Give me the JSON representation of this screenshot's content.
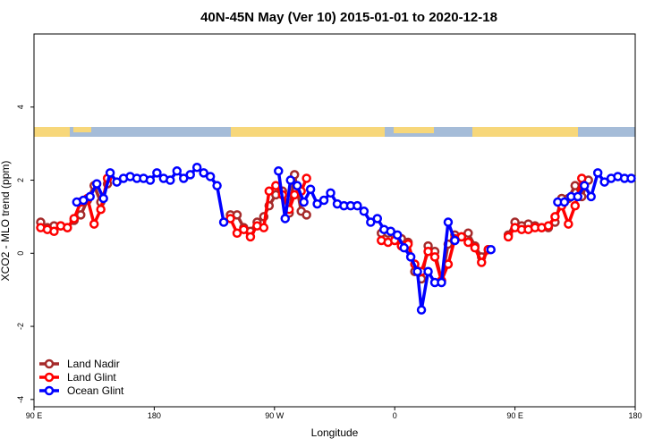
{
  "chart_data": {
    "type": "line",
    "title": "40N-45N May (Ver 10)   2015-01-01 to 2020-12-18",
    "x_label": "Longitude",
    "y_label": "XCO2 - MLO trend (ppm)",
    "xlim": [
      90,
      540
    ],
    "ylim": [
      -4.2,
      6
    ],
    "xticks": [
      {
        "value": 90,
        "label": "90 E"
      },
      180,
      {
        "value": 270,
        "label": "90 W"
      },
      {
        "value": 360,
        "label": "0"
      },
      {
        "value": 450,
        "label": "90 E"
      },
      {
        "value": 540,
        "label": "180"
      }
    ],
    "yticks": [
      -4,
      -2,
      0,
      2,
      4
    ],
    "legend": "bottom-left",
    "series": [
      {
        "name": "Land Nadir",
        "color": "#a52a2a",
        "x": [
          95,
          100,
          105,
          110,
          115,
          120,
          125,
          130,
          135,
          140,
          145,
          190,
          237,
          242,
          247,
          252,
          257,
          262,
          266,
          271,
          276,
          281,
          285,
          290,
          294,
          320,
          350,
          355,
          360,
          365,
          370,
          375,
          380,
          385,
          390,
          395,
          400,
          405,
          410,
          415,
          420,
          425,
          430,
          437,
          445,
          450,
          455,
          460,
          465,
          470,
          475,
          480,
          485,
          490,
          495,
          500,
          505
        ],
        "values": [
          0.85,
          0.7,
          0.75,
          0.75,
          0.7,
          0.9,
          1.05,
          1.45,
          1.85,
          1.4,
          1.9,
          null,
          1.05,
          1.05,
          0.7,
          0.6,
          0.85,
          1.0,
          1.3,
          1.6,
          1.7,
          1.1,
          2.15,
          1.15,
          1.05,
          null,
          0.55,
          0.55,
          0.5,
          0.4,
          0.3,
          -0.5,
          -0.7,
          0.2,
          0.05,
          -0.75,
          0.25,
          0.5,
          0.45,
          0.55,
          0.2,
          -0.1,
          0.1,
          null,
          0.5,
          0.85,
          0.75,
          0.8,
          0.75,
          0.7,
          0.7,
          0.85,
          1.5,
          1.5,
          1.85,
          1.55,
          2.0
        ]
      },
      {
        "name": "Land Glint",
        "color": "#ff0000",
        "x": [
          95,
          100,
          105,
          110,
          115,
          120,
          125,
          130,
          135,
          140,
          145,
          190,
          237,
          242,
          247,
          252,
          257,
          262,
          266,
          271,
          276,
          281,
          285,
          290,
          294,
          320,
          350,
          355,
          360,
          365,
          370,
          375,
          380,
          385,
          390,
          395,
          400,
          405,
          410,
          415,
          420,
          425,
          430,
          437,
          445,
          450,
          455,
          460,
          465,
          470,
          475,
          480,
          485,
          490,
          495,
          500
        ],
        "values": [
          0.7,
          0.65,
          0.6,
          0.75,
          0.7,
          0.95,
          1.4,
          1.5,
          0.8,
          1.2,
          2.05,
          null,
          0.95,
          0.55,
          0.65,
          0.45,
          0.75,
          0.7,
          1.7,
          1.85,
          1.6,
          1.2,
          1.6,
          1.7,
          2.05,
          null,
          0.35,
          0.3,
          0.35,
          0.2,
          0.25,
          -0.3,
          -0.5,
          0.05,
          -0.1,
          -0.75,
          -0.3,
          0.4,
          0.45,
          0.3,
          0.15,
          -0.25,
          0.1,
          null,
          0.45,
          0.7,
          0.65,
          0.65,
          0.7,
          0.7,
          0.75,
          1.0,
          1.3,
          0.8,
          1.3,
          2.05
        ]
      },
      {
        "name": "Ocean Glint",
        "color": "#0000ff",
        "x": [
          122,
          127,
          132,
          137,
          142,
          147,
          152,
          157,
          162,
          167,
          172,
          177,
          182,
          187,
          192,
          197,
          202,
          207,
          212,
          217,
          222,
          227,
          232,
          252,
          273,
          278,
          282,
          287,
          292,
          297,
          302,
          307,
          312,
          317,
          322,
          327,
          332,
          337,
          342,
          347,
          352,
          357,
          362,
          367,
          372,
          377,
          380,
          385,
          390,
          395,
          400,
          405,
          418,
          432,
          457,
          482,
          487,
          492,
          497,
          502,
          507,
          512,
          517,
          522,
          527,
          532,
          537
        ],
        "values": [
          1.4,
          1.45,
          1.55,
          1.9,
          1.5,
          2.2,
          1.95,
          2.05,
          2.1,
          2.05,
          2.05,
          2.0,
          2.2,
          2.05,
          2.0,
          2.25,
          2.05,
          2.15,
          2.35,
          2.2,
          2.1,
          1.85,
          0.85,
          null,
          2.25,
          0.95,
          2.0,
          1.85,
          1.4,
          1.75,
          1.35,
          1.45,
          1.65,
          1.35,
          1.3,
          1.3,
          1.3,
          1.15,
          0.85,
          0.95,
          0.65,
          0.6,
          0.5,
          0.15,
          -0.1,
          -0.5,
          -1.55,
          -0.5,
          -0.8,
          -0.8,
          0.85,
          0.35,
          null,
          0.1,
          null,
          1.4,
          1.4,
          1.55,
          1.55,
          1.85,
          1.55,
          2.2,
          1.95,
          2.05,
          2.1,
          2.05,
          2.05
        ]
      }
    ]
  }
}
